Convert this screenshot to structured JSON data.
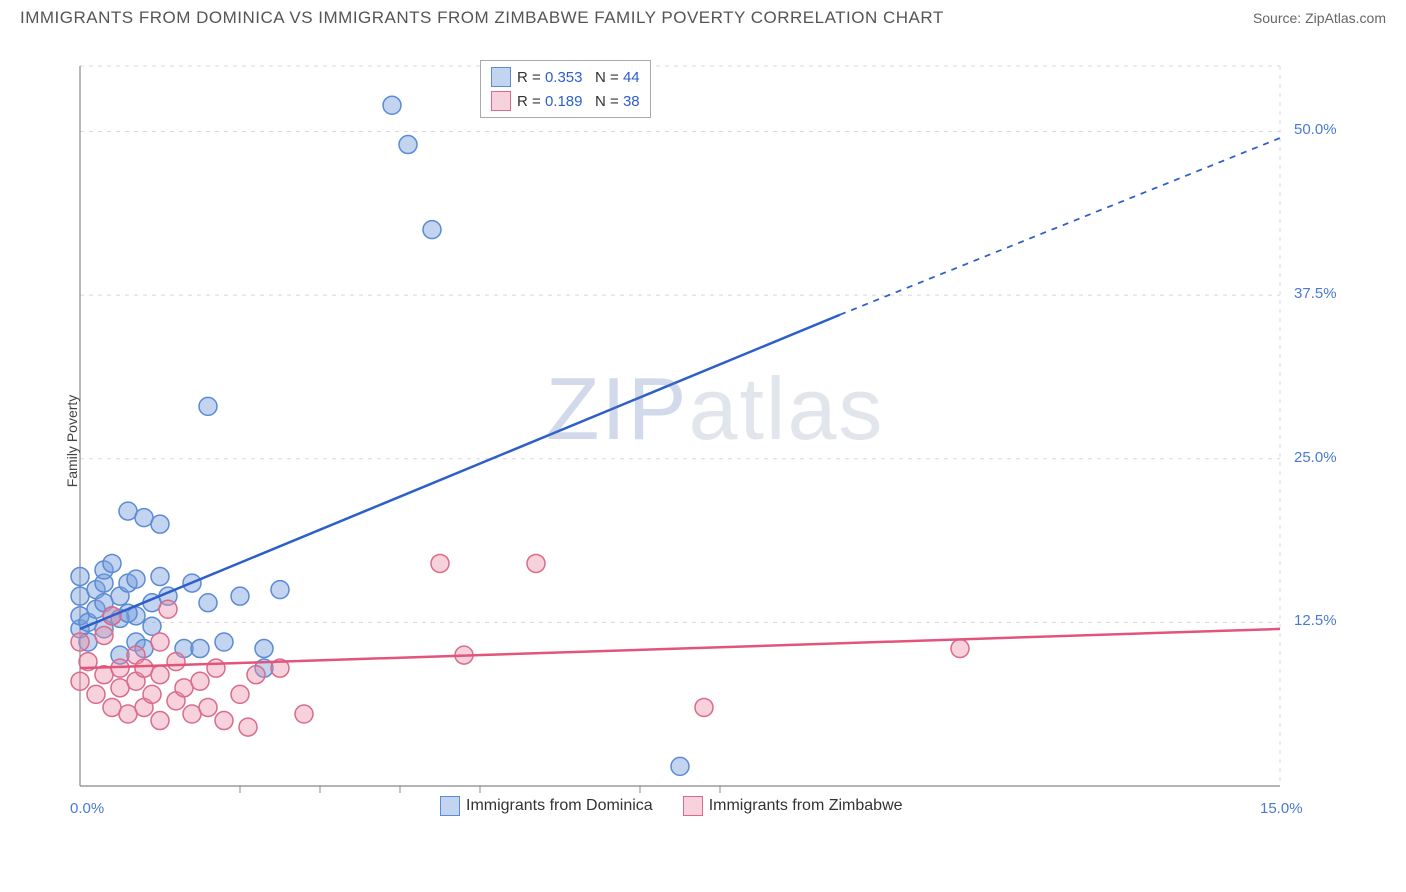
{
  "title": "IMMIGRANTS FROM DOMINICA VS IMMIGRANTS FROM ZIMBABWE FAMILY POVERTY CORRELATION CHART",
  "source": "Source: ZipAtlas.com",
  "ylabel": "Family Poverty",
  "watermark": "ZIPatlas",
  "chart": {
    "type": "scatter",
    "background_color": "#ffffff",
    "grid_color": "#d8d8d8",
    "axis_color": "#888888",
    "xlim": [
      0,
      15
    ],
    "ylim": [
      0,
      55
    ],
    "ytick_step": 12.5,
    "ytick_labels": [
      "12.5%",
      "25.0%",
      "37.5%",
      "50.0%"
    ],
    "xtick_min_label": "0.0%",
    "xtick_max_label": "15.0%",
    "xtick_minor_positions": [
      2,
      3,
      4,
      5,
      7,
      8
    ],
    "label_color": "#4a7ad4",
    "label_fontsize": 15,
    "title_fontsize": 17,
    "point_radius": 9,
    "point_stroke_width": 1.5,
    "trend_line_width": 2.5
  },
  "series": [
    {
      "name": "Immigrants from Dominica",
      "color_fill": "rgba(120,160,220,0.45)",
      "color_stroke": "#5b8bd4",
      "trend_color": "#2c5fc9",
      "r_value": "0.353",
      "n_value": "44",
      "trend": {
        "x1": 0,
        "y1": 12.0,
        "x2_solid": 9.5,
        "y2_solid": 36.0,
        "x2_dash": 15,
        "y2_dash": 49.5
      },
      "points": [
        [
          0.0,
          12
        ],
        [
          0.0,
          13
        ],
        [
          0.0,
          14.5
        ],
        [
          0.0,
          16
        ],
        [
          0.1,
          11
        ],
        [
          0.1,
          12.5
        ],
        [
          0.2,
          13.5
        ],
        [
          0.2,
          15
        ],
        [
          0.3,
          12
        ],
        [
          0.3,
          14
        ],
        [
          0.3,
          15.5
        ],
        [
          0.3,
          16.5
        ],
        [
          0.4,
          13
        ],
        [
          0.4,
          17
        ],
        [
          0.5,
          10
        ],
        [
          0.5,
          14.5
        ],
        [
          0.6,
          15.5
        ],
        [
          0.6,
          21
        ],
        [
          0.7,
          11
        ],
        [
          0.7,
          13
        ],
        [
          0.8,
          10.5
        ],
        [
          0.8,
          20.5
        ],
        [
          0.9,
          14
        ],
        [
          1.0,
          16
        ],
        [
          1.0,
          20
        ],
        [
          1.1,
          14.5
        ],
        [
          1.3,
          10.5
        ],
        [
          1.4,
          15.5
        ],
        [
          1.5,
          10.5
        ],
        [
          1.6,
          29
        ],
        [
          1.6,
          14
        ],
        [
          1.8,
          11
        ],
        [
          2.0,
          14.5
        ],
        [
          2.3,
          10.5
        ],
        [
          2.3,
          9
        ],
        [
          2.5,
          15
        ],
        [
          3.9,
          52
        ],
        [
          4.1,
          49
        ],
        [
          4.4,
          42.5
        ],
        [
          7.5,
          1.5
        ],
        [
          0.5,
          12.8
        ],
        [
          0.6,
          13.2
        ],
        [
          0.7,
          15.8
        ],
        [
          0.9,
          12.2
        ]
      ]
    },
    {
      "name": "Immigrants from Zimbabwe",
      "color_fill": "rgba(235,140,165,0.40)",
      "color_stroke": "#d96b8c",
      "trend_color": "#e3547d",
      "r_value": "0.189",
      "n_value": "38",
      "trend": {
        "x1": 0,
        "y1": 9.0,
        "x2_solid": 15,
        "y2_solid": 12.0,
        "x2_dash": 15,
        "y2_dash": 12.0
      },
      "points": [
        [
          0.0,
          11
        ],
        [
          0.0,
          8
        ],
        [
          0.1,
          9.5
        ],
        [
          0.2,
          7
        ],
        [
          0.3,
          8.5
        ],
        [
          0.3,
          11.5
        ],
        [
          0.4,
          6
        ],
        [
          0.4,
          13
        ],
        [
          0.5,
          9
        ],
        [
          0.5,
          7.5
        ],
        [
          0.6,
          5.5
        ],
        [
          0.7,
          8
        ],
        [
          0.7,
          10
        ],
        [
          0.8,
          6
        ],
        [
          0.8,
          9
        ],
        [
          0.9,
          7
        ],
        [
          1.0,
          8.5
        ],
        [
          1.0,
          5
        ],
        [
          1.1,
          13.5
        ],
        [
          1.2,
          6.5
        ],
        [
          1.2,
          9.5
        ],
        [
          1.3,
          7.5
        ],
        [
          1.4,
          5.5
        ],
        [
          1.5,
          8
        ],
        [
          1.6,
          6
        ],
        [
          1.7,
          9
        ],
        [
          1.8,
          5
        ],
        [
          2.0,
          7
        ],
        [
          2.1,
          4.5
        ],
        [
          2.2,
          8.5
        ],
        [
          2.5,
          9
        ],
        [
          2.8,
          5.5
        ],
        [
          4.5,
          17
        ],
        [
          4.8,
          10
        ],
        [
          5.7,
          17
        ],
        [
          7.8,
          6
        ],
        [
          11.0,
          10.5
        ],
        [
          1.0,
          11
        ]
      ]
    }
  ],
  "legend_top": {
    "r_label": "R =",
    "n_label": "N ="
  },
  "legend_bottom": {
    "items": [
      "Immigrants from Dominica",
      "Immigrants from Zimbabwe"
    ]
  }
}
